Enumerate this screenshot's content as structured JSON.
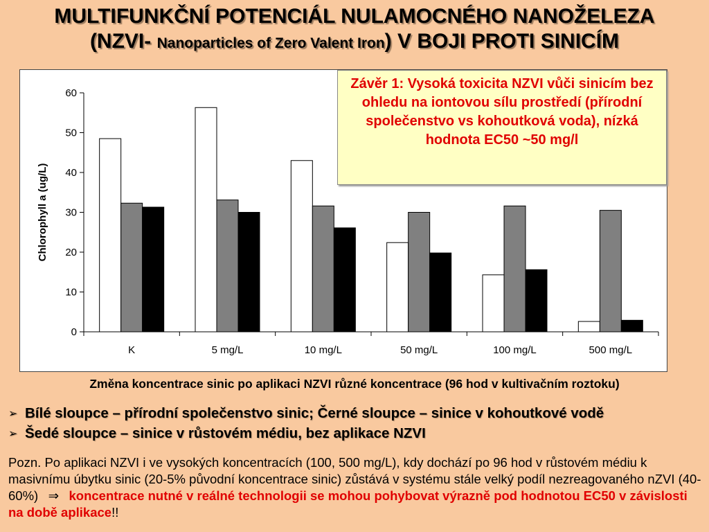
{
  "title": {
    "line1": "MULTIFUNKČNÍ POTENCIÁL NULAMOCNÉHO NANOŽELEZA",
    "line2_prefix": "(NZVI- ",
    "line2_small": "Nanoparticles of Zero Valent Iron",
    "line2_suffix": ") V BOJI PROTI SINICÍM"
  },
  "conclusion": "Závěr 1: Vysoká toxicita NZVI vůči sinicím bez ohledu na iontovou sílu prostředí (přírodní společenstvo vs kohoutková voda), nízká hodnota EC50 ~50 mg/l",
  "caption": "Změna koncentrace sinic po aplikaci NZVI různé koncentrace (96 hod v kultivačním roztoku)",
  "bullets": [
    "Bílé sloupce – přírodní společenstvo sinic; Černé sloupce – sinice v kohoutkové vodě",
    "Šedé sloupce – sinice v růstovém médiu, bez aplikace NZVI"
  ],
  "note": {
    "text": "Pozn. Po aplikaci NZVI i ve vysokých koncentracích (100, 500 mg/L), kdy dochází po 96 hod v růstovém médiu k masivnímu úbytku sinic (20-5% původní koncentrace sinic) zůstává v systému stále velký podíl nezreagovaného nZVI (40-60%)",
    "arrow": "⇒",
    "highlight": "koncentrace nutné v reálné technologii se mohou pohybovat výrazně pod hodnotou EC50 v závislosti na době aplikace",
    "end": "!!"
  },
  "chart_data": {
    "type": "bar",
    "categories": [
      "K",
      "5 mg/L",
      "10 mg/L",
      "50 mg/L",
      "100 mg/L",
      "500 mg/L"
    ],
    "series": [
      {
        "color": "#ffffff",
        "values": [
          48.5,
          56.3,
          43.0,
          22.4,
          14.3,
          2.6
        ]
      },
      {
        "color": "#808080",
        "values": [
          32.3,
          33.1,
          31.6,
          30.0,
          31.6,
          30.5
        ]
      },
      {
        "color": "#000000",
        "values": [
          31.3,
          30.0,
          26.1,
          19.8,
          15.6,
          2.9
        ]
      }
    ],
    "ylabel": "Chlorophyll a (ug/L)",
    "ylim": [
      0,
      60
    ],
    "yticks": [
      0,
      10,
      20,
      30,
      40,
      50,
      60
    ],
    "grid": false
  }
}
